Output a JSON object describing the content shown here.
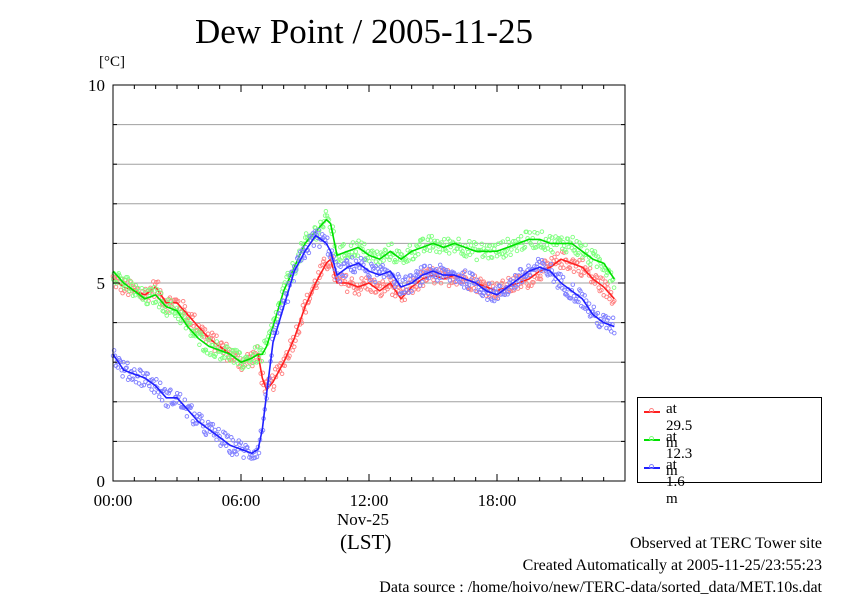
{
  "title": "Dew Point / 2005-11-25",
  "unit_label": "[°C]",
  "date_label": "Nov-25",
  "tz_label": "(LST)",
  "footer": {
    "line1": "Observed at TERC Tower site",
    "line2": "Created Automatically at 2005-11-25/23:55:23",
    "line3": "Data source : /home/hoivo/new/TERC-data/sorted_data/MET.10s.dat"
  },
  "legend": [
    {
      "label": "at 29.5 m",
      "color": "#ff2020"
    },
    {
      "label": "at 12.3 m",
      "color": "#00e000"
    },
    {
      "label": "at 1.6 m",
      "color": "#2020ff"
    }
  ],
  "chart_data": {
    "type": "line",
    "title": "Dew Point / 2005-11-25",
    "ylabel": "[°C]",
    "xlabel": "(LST)",
    "xlim": [
      0,
      24
    ],
    "ylim": [
      0,
      10
    ],
    "x_ticks": [
      {
        "value": 0,
        "label": "00:00"
      },
      {
        "value": 6,
        "label": "06:00"
      },
      {
        "value": 12,
        "label": "12:00"
      },
      {
        "value": 18,
        "label": "18:00"
      }
    ],
    "y_ticks": [
      {
        "value": 0,
        "label": "0"
      },
      {
        "value": 5,
        "label": "5"
      },
      {
        "value": 10,
        "label": "10"
      }
    ],
    "grid": true,
    "legend_position": "right-bottom",
    "series": [
      {
        "name": "at 29.5 m",
        "color": "#ff2020",
        "light": "#ff8080",
        "x": [
          0,
          0.5,
          1.0,
          1.5,
          2.0,
          2.5,
          3.0,
          3.5,
          4.0,
          4.5,
          5.0,
          5.5,
          6.0,
          6.5,
          6.8,
          7.0,
          7.2,
          7.5,
          8.0,
          8.5,
          9.0,
          9.5,
          10.0,
          10.2,
          10.5,
          11.0,
          11.5,
          12.0,
          12.5,
          13.0,
          13.5,
          14.0,
          14.5,
          15.0,
          15.5,
          16.0,
          16.5,
          17.0,
          17.5,
          18.0,
          18.5,
          19.0,
          19.5,
          20.0,
          20.5,
          21.0,
          21.5,
          22.0,
          22.5,
          23.0,
          23.5
        ],
        "y": [
          5.1,
          4.9,
          4.8,
          4.7,
          4.9,
          4.5,
          4.5,
          4.2,
          3.9,
          3.6,
          3.4,
          3.2,
          3.0,
          3.1,
          3.2,
          2.6,
          2.3,
          2.5,
          3.0,
          3.6,
          4.4,
          5.0,
          5.5,
          5.6,
          5.0,
          5.0,
          4.9,
          5.0,
          4.8,
          5.0,
          4.6,
          4.9,
          5.1,
          5.2,
          5.1,
          5.2,
          5.1,
          5.0,
          4.9,
          4.8,
          4.9,
          5.0,
          5.1,
          5.3,
          5.4,
          5.6,
          5.5,
          5.4,
          5.1,
          4.9,
          4.6
        ]
      },
      {
        "name": "at 12.3 m",
        "color": "#00e000",
        "light": "#80ff80",
        "x": [
          0,
          0.5,
          1.0,
          1.5,
          2.0,
          2.5,
          3.0,
          3.5,
          4.0,
          4.5,
          5.0,
          5.5,
          6.0,
          6.5,
          6.8,
          7.0,
          7.2,
          7.5,
          8.0,
          8.5,
          9.0,
          9.5,
          10.0,
          10.2,
          10.5,
          11.0,
          11.5,
          12.0,
          12.5,
          13.0,
          13.5,
          14.0,
          14.5,
          15.0,
          15.5,
          16.0,
          16.5,
          17.0,
          17.5,
          18.0,
          18.5,
          19.0,
          19.5,
          20.0,
          20.5,
          21.0,
          21.5,
          22.0,
          22.5,
          23.0,
          23.5
        ],
        "y": [
          5.3,
          5.0,
          4.8,
          4.6,
          4.7,
          4.4,
          4.3,
          3.9,
          3.6,
          3.4,
          3.3,
          3.2,
          3.0,
          3.1,
          3.2,
          3.2,
          3.4,
          3.9,
          4.8,
          5.4,
          6.0,
          6.3,
          6.6,
          6.5,
          5.7,
          5.8,
          5.9,
          5.7,
          5.6,
          5.8,
          5.6,
          5.8,
          5.9,
          6.0,
          5.9,
          6.0,
          5.9,
          5.8,
          5.8,
          5.8,
          5.9,
          6.0,
          6.1,
          6.1,
          6.0,
          6.0,
          6.0,
          5.8,
          5.6,
          5.5,
          5.1
        ]
      },
      {
        "name": "at 1.6 m",
        "color": "#2020ff",
        "light": "#8080ff",
        "x": [
          0,
          0.5,
          1.0,
          1.5,
          2.0,
          2.5,
          3.0,
          3.5,
          4.0,
          4.5,
          5.0,
          5.5,
          6.0,
          6.5,
          6.8,
          7.0,
          7.2,
          7.5,
          8.0,
          8.5,
          9.0,
          9.5,
          10.0,
          10.2,
          10.5,
          11.0,
          11.5,
          12.0,
          12.5,
          13.0,
          13.5,
          14.0,
          14.5,
          15.0,
          15.5,
          16.0,
          16.5,
          17.0,
          17.5,
          18.0,
          18.5,
          19.0,
          19.5,
          20.0,
          20.5,
          21.0,
          21.5,
          22.0,
          22.5,
          23.0,
          23.5
        ],
        "y": [
          3.2,
          2.8,
          2.7,
          2.6,
          2.4,
          2.1,
          2.1,
          1.8,
          1.5,
          1.3,
          1.1,
          0.9,
          0.8,
          0.7,
          0.8,
          1.3,
          2.2,
          3.5,
          4.4,
          5.3,
          5.8,
          6.2,
          6.0,
          5.8,
          5.2,
          5.4,
          5.5,
          5.3,
          5.2,
          5.3,
          4.9,
          5.0,
          5.2,
          5.3,
          5.2,
          5.2,
          5.1,
          5.0,
          4.8,
          4.7,
          4.9,
          5.1,
          5.3,
          5.4,
          5.3,
          5.0,
          4.8,
          4.6,
          4.2,
          4.0,
          3.9
        ]
      }
    ]
  }
}
